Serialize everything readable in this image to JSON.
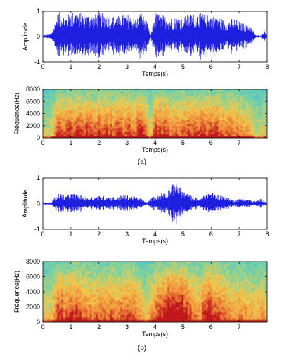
{
  "panels": {
    "a": {
      "label": "(a)"
    },
    "b": {
      "label": "(b)"
    }
  },
  "colors": {
    "waveform": "#1f1fe0",
    "spectro_low": "#3fb7c7",
    "spectro_mid": "#f2c94c",
    "spectro_high": "#c0141a"
  },
  "chart_data": [
    {
      "id": "a-waveform",
      "type": "line",
      "description_in_image": "speech waveform (panel a)",
      "xlabel": "Temps(s)",
      "ylabel": "Amplitude",
      "xlim": [
        0,
        8
      ],
      "ylim": [
        -1,
        1
      ],
      "xticks": [
        0,
        1,
        2,
        3,
        4,
        5,
        6,
        7,
        8
      ],
      "yticks": [
        -1,
        0,
        1
      ],
      "series": [
        {
          "envelope_seconds": [
            0,
            0.3,
            0.45,
            0.55,
            0.8,
            1.0,
            1.2,
            1.5,
            1.8,
            2.0,
            2.3,
            2.6,
            3.0,
            3.3,
            3.5,
            3.7,
            3.85,
            4.0,
            4.3,
            4.6,
            5.0,
            5.3,
            5.6,
            5.9,
            6.2,
            6.5,
            6.8,
            7.1,
            7.4,
            7.6,
            7.8,
            7.9,
            8.0
          ],
          "envelope_amplitude": [
            0.05,
            0.1,
            0.6,
            1.0,
            0.8,
            0.95,
            1.0,
            0.9,
            0.85,
            0.95,
            0.9,
            0.8,
            0.9,
            0.7,
            1.0,
            0.6,
            0.05,
            0.95,
            0.85,
            0.75,
            0.8,
            0.9,
            0.95,
            0.85,
            0.9,
            0.6,
            0.75,
            0.55,
            0.45,
            0.05,
            0.05,
            0.3,
            0.05
          ]
        }
      ]
    },
    {
      "id": "a-spectrogram",
      "type": "heatmap",
      "xlabel": "Temps(s)",
      "ylabel": "Fréquence(Hz)",
      "xlim": [
        0,
        8
      ],
      "ylim": [
        0,
        8000
      ],
      "xticks": [
        0,
        1,
        2,
        3,
        4,
        5,
        6,
        7
      ],
      "yticks": [
        0,
        2000,
        4000,
        6000,
        8000
      ]
    },
    {
      "id": "b-waveform",
      "type": "line",
      "xlabel": "Temps(s)",
      "ylabel": "Amplitude",
      "xlim": [
        0,
        8
      ],
      "ylim": [
        -1,
        1
      ],
      "xticks": [
        0,
        1,
        2,
        3,
        4,
        5,
        6,
        7,
        8
      ],
      "yticks": [
        -1,
        0,
        1
      ],
      "series": [
        {
          "envelope_seconds": [
            0,
            0.3,
            0.45,
            0.6,
            0.8,
            1.0,
            1.3,
            1.6,
            2.0,
            2.3,
            2.6,
            2.9,
            3.2,
            3.5,
            3.7,
            3.9,
            4.2,
            4.5,
            4.7,
            5.0,
            5.3,
            5.6,
            5.9,
            6.2,
            6.5,
            6.8,
            7.1,
            7.4,
            7.6,
            7.8,
            8.0
          ],
          "envelope_amplitude": [
            0.05,
            0.05,
            0.3,
            0.45,
            0.3,
            0.4,
            0.35,
            0.25,
            0.3,
            0.3,
            0.25,
            0.35,
            0.3,
            0.2,
            0.05,
            0.25,
            0.4,
            0.6,
            0.9,
            0.5,
            0.3,
            0.2,
            0.5,
            0.35,
            0.3,
            0.15,
            0.2,
            0.15,
            0.1,
            0.2,
            0.05
          ]
        }
      ]
    },
    {
      "id": "b-spectrogram",
      "type": "heatmap",
      "xlabel": "Temps(s)",
      "ylabel": "Fréquence(Hz)",
      "xlim": [
        0,
        8
      ],
      "ylim": [
        0,
        8000
      ],
      "xticks": [
        0,
        1,
        2,
        3,
        4,
        5,
        6,
        7
      ],
      "yticks": [
        0,
        2000,
        4000,
        6000,
        8000
      ]
    }
  ]
}
